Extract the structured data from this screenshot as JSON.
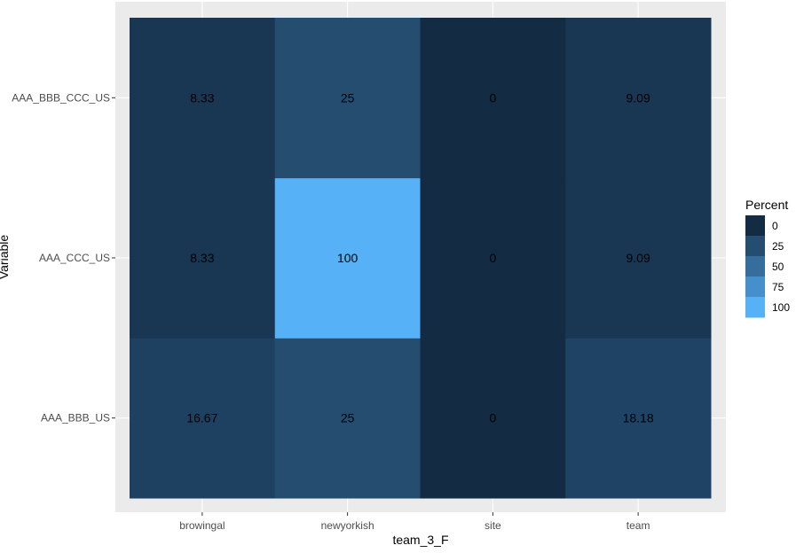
{
  "chart_data": {
    "type": "heatmap",
    "xlabel": "team_3_F",
    "ylabel": "Variable",
    "x_categories": [
      "browingal",
      "newyorkish",
      "site",
      "team"
    ],
    "y_categories": [
      "AAA_BBB_US",
      "AAA_CCC_US",
      "AAA_BBB_CCC_US"
    ],
    "values": [
      [
        16.67,
        25,
        0,
        18.18
      ],
      [
        8.33,
        100,
        0,
        9.09
      ],
      [
        8.33,
        25,
        0,
        9.09
      ]
    ],
    "labels": [
      [
        "16.67",
        "25",
        "0",
        "18.18"
      ],
      [
        "8.33",
        "100",
        "0",
        "9.09"
      ],
      [
        "8.33",
        "25",
        "0",
        "9.09"
      ]
    ],
    "legend": {
      "title": "Percent",
      "breaks": [
        "0",
        "25",
        "50",
        "75",
        "100"
      ],
      "placement": "right"
    },
    "color_low": "#132B43",
    "color_high": "#56B1F7",
    "value_range": [
      0,
      100
    ],
    "panel_background": "#EBEBEB",
    "grid": true
  }
}
